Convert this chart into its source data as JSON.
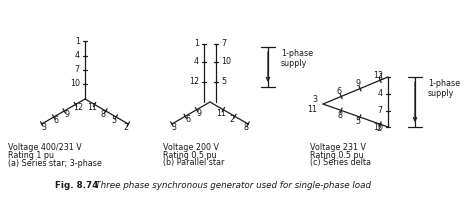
{
  "bg_color": "#ffffff",
  "line_color": "#1a1a1a",
  "text_color": "#1a1a1a",
  "font_size": 5.8,
  "diagrams": {
    "a_voltage": "Voltage 400/231 V",
    "a_rating": "Rating 1 pu",
    "a_label": "(a) Series star; 3-phase",
    "b_voltage": "Voltage 200 V",
    "b_rating": "Rating 0.5 pu",
    "b_label": "(b) Parallel star",
    "c_voltage": "Voltage 231 V",
    "c_rating": "Rating 0.5 pu",
    "c_label": "(c) Series delta"
  },
  "caption_bold": "Fig. 8.74",
  "caption_italic": "   Three phase synchronous generator used for single-phase load"
}
